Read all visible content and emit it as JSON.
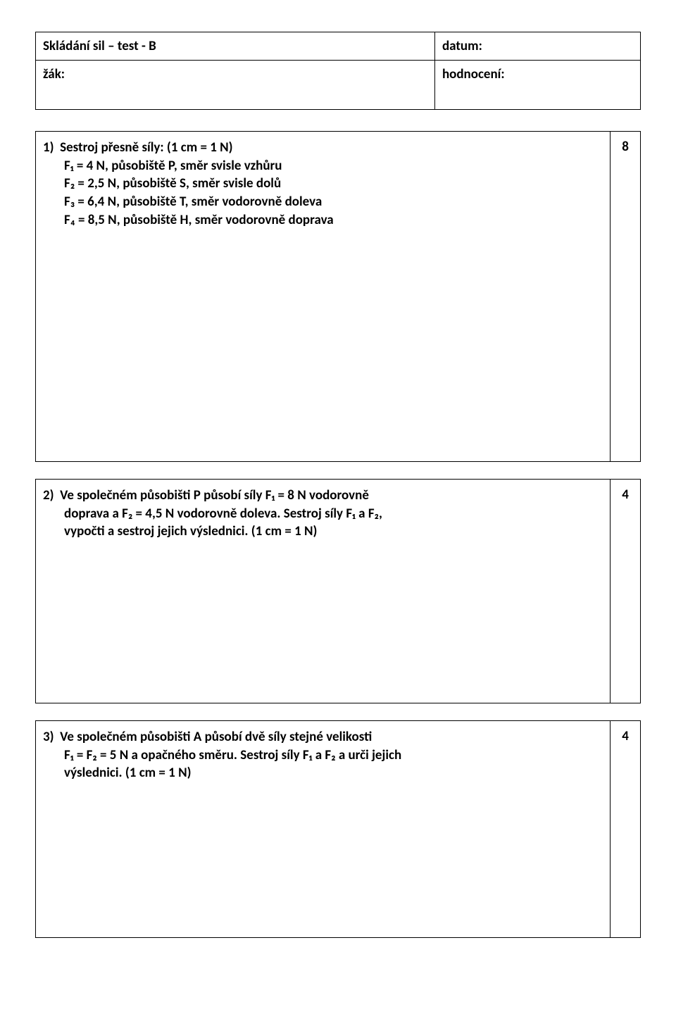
{
  "header": {
    "title": "Skládání sil – test - B",
    "date_label": "datum:",
    "student_label": "žák:",
    "grade_label": "hodnocení:"
  },
  "q1": {
    "score": "8",
    "line1": "1)  Sestroj přesně síly: (1 cm = 1 N)",
    "line2": "F₁ = 4 N, působiště P, směr svisle vzhůru",
    "line3": "F₂ = 2,5 N, působiště S, směr svisle dolů",
    "line4": "F₃ = 6,4 N, působiště T, směr vodorovně doleva",
    "line5": "F₄ = 8,5 N, působiště H, směr vodorovně doprava"
  },
  "q2": {
    "score": "4",
    "line1": "2)  Ve společném působišti P působí síly F₁ = 8 N vodorovně",
    "line2": "doprava a F₂ = 4,5 N vodorovně doleva. Sestroj síly F₁ a F₂,",
    "line3": "vypočti a sestroj jejich výslednici. (1 cm = 1 N)"
  },
  "q3": {
    "score": "4",
    "line1": "3)  Ve společném působišti A působí dvě síly stejné velikosti",
    "line2": "F₁ = F₂ = 5 N a opačného směru. Sestroj síly F₁ a F₂ a urči jejich",
    "line3": "výslednici. (1 cm = 1 N)"
  },
  "style": {
    "bg": "#ffffff",
    "text": "#000000",
    "border": "#000000",
    "font_main_pt": 19,
    "font_weight": "bold"
  }
}
